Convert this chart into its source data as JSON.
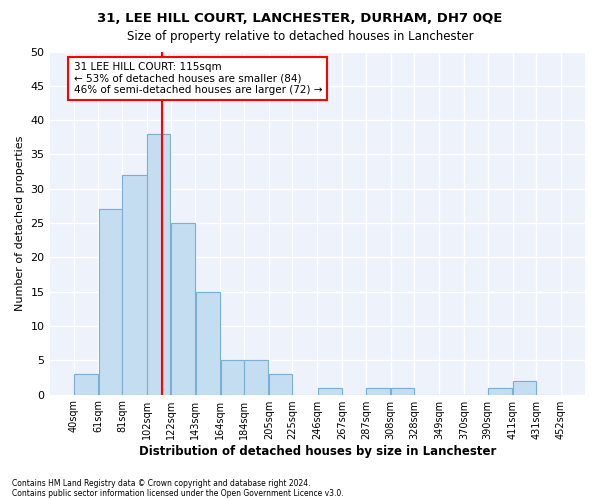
{
  "title": "31, LEE HILL COURT, LANCHESTER, DURHAM, DH7 0QE",
  "subtitle": "Size of property relative to detached houses in Lanchester",
  "xlabel": "Distribution of detached houses by size in Lanchester",
  "ylabel": "Number of detached properties",
  "bar_color": "#c5ddf0",
  "bar_edge_color": "#7ab0d4",
  "bin_edges": [
    40,
    61,
    81,
    102,
    122,
    143,
    164,
    184,
    205,
    225,
    246,
    267,
    287,
    308,
    328,
    349,
    370,
    390,
    411,
    431,
    452
  ],
  "bin_labels": [
    "40sqm",
    "61sqm",
    "81sqm",
    "102sqm",
    "122sqm",
    "143sqm",
    "164sqm",
    "184sqm",
    "205sqm",
    "225sqm",
    "246sqm",
    "267sqm",
    "287sqm",
    "308sqm",
    "328sqm",
    "349sqm",
    "370sqm",
    "390sqm",
    "411sqm",
    "431sqm",
    "452sqm"
  ],
  "counts": [
    3,
    27,
    32,
    38,
    25,
    15,
    5,
    5,
    3,
    0,
    1,
    0,
    1,
    1,
    0,
    0,
    0,
    1,
    2,
    0
  ],
  "property_size": 115,
  "property_label": "31 LEE HILL COURT: 115sqm",
  "annotation_line1": "← 53% of detached houses are smaller (84)",
  "annotation_line2": "46% of semi-detached houses are larger (72) →",
  "annotation_box_color": "white",
  "annotation_box_edge_color": "red",
  "vline_color": "red",
  "ylim": [
    0,
    50
  ],
  "yticks": [
    0,
    5,
    10,
    15,
    20,
    25,
    30,
    35,
    40,
    45,
    50
  ],
  "background_color": "#eef2fb",
  "grid_color": "white",
  "footer_line1": "Contains HM Land Registry data © Crown copyright and database right 2024.",
  "footer_line2": "Contains public sector information licensed under the Open Government Licence v3.0."
}
